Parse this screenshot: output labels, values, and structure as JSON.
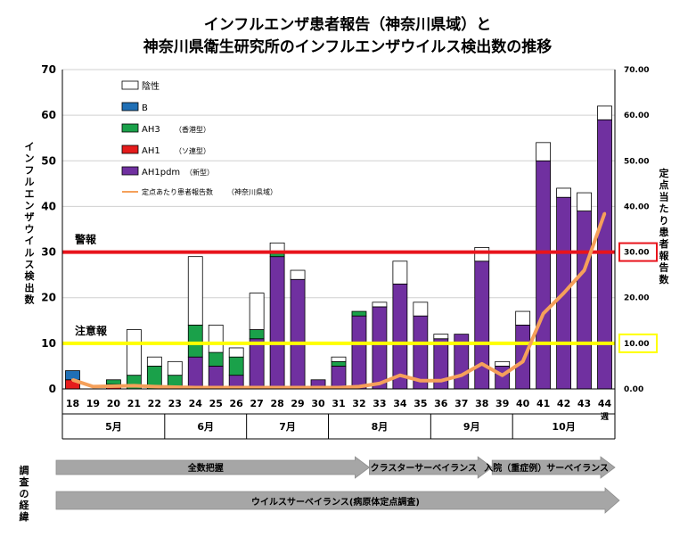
{
  "chart_data": {
    "type": "bar",
    "title_lines": [
      "インフルエンザ患者報告（神奈川県域）と",
      "神奈川県衛生研究所のインフルエンザウイルス検出数の推移"
    ],
    "ylabel": [
      "イ",
      "ン",
      "フ",
      "ル",
      "エ",
      "ン",
      "ザ",
      "ウ",
      "イ",
      "ル",
      "ス",
      "検",
      "出",
      "数"
    ],
    "y2label": [
      "定",
      "点",
      "当",
      "た",
      "り",
      "患",
      "者",
      "報",
      "告",
      "数"
    ],
    "ylim": [
      0,
      70
    ],
    "y_ticks": [
      "0",
      "10",
      "20",
      "30",
      "40",
      "50",
      "60",
      "70"
    ],
    "y2_ticks": [
      "0.00",
      "10.00",
      "20.00",
      "30.00",
      "40.00",
      "50.00",
      "60.00",
      "70.00"
    ],
    "categories": [
      "18",
      "19",
      "20",
      "21",
      "22",
      "23",
      "24",
      "25",
      "26",
      "27",
      "28",
      "29",
      "30",
      "31",
      "32",
      "33",
      "34",
      "35",
      "36",
      "37",
      "38",
      "39",
      "40",
      "41",
      "42",
      "43",
      "44"
    ],
    "week_suffix": "週",
    "months": [
      {
        "label": "5月",
        "start": 0,
        "end": 5
      },
      {
        "label": "6月",
        "start": 5,
        "end": 9
      },
      {
        "label": "7月",
        "start": 9,
        "end": 13
      },
      {
        "label": "8月",
        "start": 13,
        "end": 18
      },
      {
        "label": "9月",
        "start": 18,
        "end": 22
      },
      {
        "label": "10月",
        "start": 22,
        "end": 27
      }
    ],
    "series": [
      {
        "name": "AH1pdm",
        "note": "（新型）",
        "color": "#7030a0",
        "values": [
          0,
          0,
          0,
          0,
          0,
          0,
          7,
          5,
          3,
          11,
          29,
          24,
          2,
          5,
          16,
          18,
          23,
          16,
          11,
          12,
          28,
          5,
          14,
          50,
          42,
          39,
          59
        ]
      },
      {
        "name": "AH1",
        "note": "（ソ連型）",
        "color": "#e51c1c",
        "values": [
          2,
          0,
          1,
          0,
          0,
          0,
          0,
          0,
          0,
          0,
          0,
          0,
          0,
          0,
          0,
          0,
          0,
          0,
          0,
          0,
          0,
          0,
          0,
          0,
          0,
          0,
          0
        ]
      },
      {
        "name": "AH3",
        "note": "（香港型）",
        "color": "#1aa14a",
        "values": [
          0,
          0,
          1,
          3,
          5,
          3,
          7,
          3,
          4,
          2,
          1,
          0,
          0,
          1,
          1,
          0,
          0,
          0,
          0,
          0,
          0,
          0,
          0,
          0,
          0,
          0,
          0
        ]
      },
      {
        "name": "B",
        "note": "",
        "color": "#1f6fb5",
        "values": [
          2,
          0,
          0,
          0,
          0,
          0,
          0,
          0,
          0,
          0,
          0,
          0,
          0,
          0,
          0,
          0,
          0,
          0,
          0,
          0,
          0,
          0,
          0,
          0,
          0,
          0,
          0
        ]
      },
      {
        "name": "陰性",
        "note": "",
        "color": "#ffffff",
        "values": [
          0,
          0,
          0,
          10,
          2,
          3,
          15,
          6,
          2,
          8,
          2,
          2,
          0,
          1,
          0,
          1,
          5,
          3,
          1,
          0,
          3,
          1,
          3,
          4,
          2,
          4,
          3
        ]
      }
    ],
    "line": {
      "name": "定点あたり患者報告数",
      "note": "（神奈川県域）",
      "color": "#f5a05a",
      "values": [
        2.0,
        0.5,
        0.6,
        0.7,
        0.5,
        0.4,
        0.3,
        0.3,
        0.3,
        0.3,
        0.3,
        0.3,
        0.3,
        0.3,
        0.5,
        1.2,
        3.0,
        1.8,
        1.8,
        3.0,
        5.5,
        3.0,
        6.0,
        16.5,
        21.0,
        26.0,
        38.5
      ]
    },
    "thresholds": [
      {
        "label": "警報",
        "value": 30,
        "value_label": "30.00",
        "color": "#e8141c"
      },
      {
        "label": "注意報",
        "value": 10,
        "value_label": "10.00",
        "color": "#ffff00"
      }
    ]
  },
  "survey": {
    "side_label": [
      "調",
      "査",
      "の",
      "経",
      "緯"
    ],
    "phases": [
      {
        "label": "全数把握",
        "start": 0,
        "end": 15
      },
      {
        "label": "クラスターサーベイランス",
        "start": 15,
        "end": 21
      },
      {
        "label": "入院（重症例）サーベイランス",
        "start": 21,
        "end": 27
      }
    ],
    "virus_surveillance": "ウイルスサーベイランス(病原体定点調査)",
    "arrow_color": "#a6a6a6"
  }
}
